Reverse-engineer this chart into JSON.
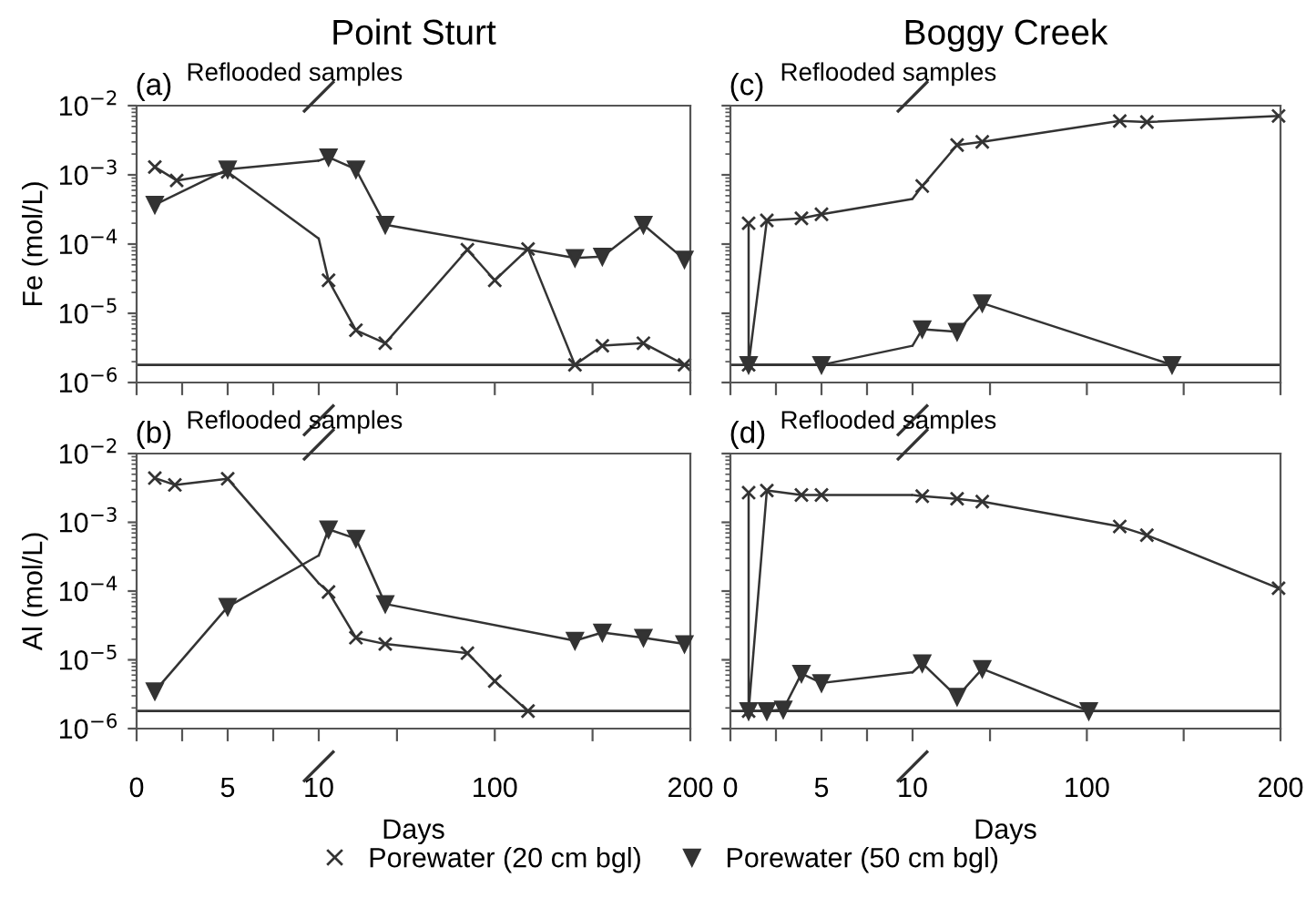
{
  "chart_data": [
    {
      "type": "line",
      "ylabel": "Fe (mol/L)",
      "log": "y",
      "ylim": [
        1e-06,
        0.01
      ],
      "yticks": [
        {
          "value": 1e-06,
          "label": "10$^{−6}$"
        },
        {
          "value": 1e-05,
          "label": "10$^{−5}$"
        },
        {
          "value": 0.0001,
          "label": "10$^{−4}$"
        },
        {
          "value": 0.001,
          "label": "10$^{−3}$"
        },
        {
          "value": 0.01,
          "label": "10$^{−2}$"
        }
      ],
      "xlim": [
        0,
        10
      ],
      "xticks": [
        0,
        {
          "value": 2.5,
          "label": null
        },
        5,
        {
          "value": 7.5,
          "label": null
        }
      ],
      "tick_labels": "y",
      "grid": false,
      "legend": "bottom",
      "ref_lines": [
        {
          "axis": "y",
          "value": 1.8e-06,
          "color": "#333333"
        }
      ],
      "annotations": [
        "(a)",
        "Reflooded samples"
      ],
      "series": [
        {
          "name": "Porewater (20 cm bgl)",
          "color": "#333333",
          "marker": "cross",
          "x": [
            1.0,
            2.2,
            5
          ],
          "values": [
            0.0013,
            0.00083,
            0.0011
          ]
        },
        {
          "name": "Porewater (50 cm bgl)",
          "color": "#333333",
          "marker": "triangle",
          "x": [
            1.0,
            5
          ],
          "values": [
            0.00037,
            0.0012
          ]
        },
        {
          "color": "#333333",
          "marker": "none",
          "x": [
            5,
            10
          ],
          "values": [
            0.0011,
            0.00012
          ]
        },
        {
          "color": "#333333",
          "marker": "none",
          "x": [
            5,
            10
          ],
          "values": [
            0.0012,
            0.0016
          ]
        }
      ]
    },
    {
      "type": "line",
      "title": "Point Sturt",
      "log": "y",
      "ylim": [
        1e-06,
        0.01
      ],
      "xlim": [
        10,
        200
      ],
      "xticks": [
        10,
        {
          "value": 50,
          "label": null
        },
        100,
        {
          "value": 150,
          "label": null
        },
        200
      ],
      "tick_labels": false,
      "grid": false,
      "legend": "bottom",
      "ref_lines": [
        {
          "axis": "y",
          "value": 1.8e-06,
          "color": "#333333"
        }
      ],
      "series": [
        {
          "name": "Porewater (20 cm bgl)",
          "color": "#333333",
          "marker": "cross",
          "x": [
            15,
            29,
            44,
            86,
            100,
            117,
            141,
            155,
            176,
            197
          ],
          "values": [
            3e-05,
            5.7e-06,
            3.7e-06,
            8.3e-05,
            3e-05,
            8.5e-05,
            1.8e-06,
            3.4e-06,
            3.7e-06,
            1.8e-06
          ]
        },
        {
          "name": "Porewater (50 cm bgl)",
          "color": "#333333",
          "marker": "triangle",
          "x": [
            15,
            29,
            44,
            141,
            155,
            176,
            197
          ],
          "values": [
            0.0018,
            0.0012,
            0.00019,
            6.3e-05,
            6.6e-05,
            0.00019,
            6e-05
          ]
        },
        {
          "color": "#333333",
          "marker": "none",
          "x": [
            10,
            15
          ],
          "values": [
            0.00012,
            3e-05
          ]
        },
        {
          "color": "#333333",
          "marker": "none",
          "x": [
            10,
            15
          ],
          "values": [
            0.0016,
            0.0018
          ]
        }
      ]
    },
    {
      "type": "line",
      "ylabel": "Al (mol/L)",
      "log": "y",
      "ylim": [
        1e-06,
        0.01
      ],
      "yticks": [
        {
          "value": 1e-06,
          "label": "10$^{−6}$"
        },
        {
          "value": 1e-05,
          "label": "10$^{−5}$"
        },
        {
          "value": 0.0001,
          "label": "10$^{−4}$"
        },
        {
          "value": 0.001,
          "label": "10$^{−3}$"
        },
        {
          "value": 0.01,
          "label": "10$^{−2}$"
        }
      ],
      "xlim": [
        0,
        10
      ],
      "xticks": [
        0,
        {
          "value": 2.5,
          "label": null
        },
        5,
        {
          "value": 7.5,
          "label": null
        }
      ],
      "grid": false,
      "legend": "bottom",
      "ref_lines": [
        {
          "axis": "y",
          "value": 1.8e-06,
          "color": "#333333"
        }
      ],
      "annotations": [
        "(b)",
        "Reflooded samples"
      ],
      "series": [
        {
          "name": "Porewater (20 cm bgl)",
          "color": "#333333",
          "marker": "cross",
          "x": [
            1.0,
            2.1,
            5
          ],
          "values": [
            0.0044,
            0.0035,
            0.0043
          ]
        },
        {
          "name": "Porewater (50 cm bgl)",
          "color": "#333333",
          "marker": "triangle",
          "x": [
            1.0,
            5
          ],
          "values": [
            3.5e-06,
            5.9e-05
          ]
        },
        {
          "color": "#333333",
          "marker": "none",
          "x": [
            5,
            10
          ],
          "values": [
            0.0043,
            0.00013
          ]
        },
        {
          "color": "#333333",
          "marker": "none",
          "x": [
            5,
            10
          ],
          "values": [
            5.9e-05,
            0.00033
          ]
        }
      ]
    },
    {
      "type": "line",
      "xlabel": "Days",
      "log": "y",
      "ylim": [
        1e-06,
        0.01
      ],
      "xlim": [
        10,
        200
      ],
      "xticks": [
        10,
        {
          "value": 50,
          "label": null
        },
        100,
        {
          "value": 150,
          "label": null
        },
        200
      ],
      "tick_labels": "x",
      "grid": false,
      "legend": "bottom",
      "ref_lines": [
        {
          "axis": "y",
          "value": 1.8e-06,
          "color": "#333333"
        }
      ],
      "series": [
        {
          "name": "Porewater (20 cm bgl)",
          "color": "#333333",
          "marker": "cross",
          "x": [
            15,
            29,
            44,
            86,
            100,
            117
          ],
          "values": [
            9.7e-05,
            2.1e-05,
            1.7e-05,
            1.25e-05,
            4.9e-06,
            1.8e-06
          ]
        },
        {
          "name": "Porewater (50 cm bgl)",
          "color": "#333333",
          "marker": "triangle",
          "x": [
            15,
            29,
            44,
            141,
            155,
            176,
            197
          ],
          "values": [
            0.00079,
            0.00058,
            6.5e-05,
            1.9e-05,
            2.5e-05,
            2.1e-05,
            1.7e-05
          ]
        },
        {
          "color": "#333333",
          "marker": "none",
          "x": [
            10,
            15
          ],
          "values": [
            0.00013,
            9.7e-05
          ]
        },
        {
          "color": "#333333",
          "marker": "none",
          "x": [
            10,
            15
          ],
          "values": [
            0.00033,
            0.00079
          ]
        }
      ]
    },
    {
      "type": "line",
      "log": "y",
      "ylim": [
        1e-06,
        0.01
      ],
      "yticks": [
        {
          "value": 1e-06,
          "label": null
        },
        {
          "value": 1e-05,
          "label": null
        },
        {
          "value": 0.0001,
          "label": null
        },
        {
          "value": 0.001,
          "label": null
        },
        {
          "value": 0.01,
          "label": null
        }
      ],
      "xlim": [
        0,
        10
      ],
      "xticks": [
        0,
        {
          "value": 2.5,
          "label": null
        },
        5,
        {
          "value": 7.5,
          "label": null
        }
      ],
      "tick_labels": false,
      "grid": false,
      "legend": "bottom",
      "ref_lines": [
        {
          "axis": "y",
          "value": 1.8e-06,
          "color": "#333333"
        }
      ],
      "annotations": [
        "(c)",
        "Reflooded samples"
      ],
      "series": [
        {
          "name": "Porewater (20 cm bgl)",
          "color": "#333333",
          "marker": "cross",
          "x": [
            1.0,
            1.0,
            2.0,
            3.9,
            5
          ],
          "values": [
            0.0002,
            1.8e-06,
            0.00022,
            0.000235,
            0.00027
          ]
        },
        {
          "name": "Porewater (50 cm bgl)",
          "color": "#333333",
          "marker": "triangle",
          "x": [
            1.0,
            5
          ],
          "values": [
            1.8e-06,
            1.8e-06
          ]
        },
        {
          "color": "#333333",
          "marker": "none",
          "x": [
            5,
            10
          ],
          "values": [
            0.00027,
            0.00045
          ]
        },
        {
          "color": "#333333",
          "marker": "none",
          "x": [
            5,
            10
          ],
          "values": [
            1.8e-06,
            3.4e-06
          ]
        }
      ]
    },
    {
      "type": "line",
      "title": "Boggy Creek",
      "log": "y",
      "ylim": [
        1e-06,
        0.01
      ],
      "xlim": [
        10,
        200
      ],
      "xticks": [
        10,
        {
          "value": 50,
          "label": null
        },
        100,
        {
          "value": 150,
          "label": null
        },
        200
      ],
      "tick_labels": false,
      "grid": false,
      "legend": "bottom",
      "ref_lines": [
        {
          "axis": "y",
          "value": 1.8e-06,
          "color": "#333333"
        }
      ],
      "series": [
        {
          "name": "Porewater (20 cm bgl)",
          "color": "#333333",
          "marker": "cross",
          "x": [
            15,
            33,
            46,
            117,
            131,
            199
          ],
          "values": [
            0.00069,
            0.0027,
            0.003,
            0.006,
            0.0058,
            0.0071
          ]
        },
        {
          "name": "Porewater (50 cm bgl)",
          "color": "#333333",
          "marker": "triangle",
          "x": [
            15,
            33,
            46,
            144
          ],
          "values": [
            5.9e-06,
            5.4e-06,
            1.4e-05,
            1.8e-06
          ]
        },
        {
          "color": "#333333",
          "marker": "none",
          "x": [
            10,
            15
          ],
          "values": [
            0.00045,
            0.00069
          ]
        },
        {
          "color": "#333333",
          "marker": "none",
          "x": [
            10,
            15
          ],
          "values": [
            3.4e-06,
            5.9e-06
          ]
        }
      ]
    },
    {
      "type": "line",
      "log": "y",
      "ylim": [
        1e-06,
        0.01
      ],
      "yticks": [
        {
          "value": 1e-06,
          "label": null
        },
        {
          "value": 1e-05,
          "label": null
        },
        {
          "value": 0.0001,
          "label": null
        },
        {
          "value": 0.001,
          "label": null
        },
        {
          "value": 0.01,
          "label": null
        }
      ],
      "xlim": [
        0,
        10
      ],
      "xticks": [
        0,
        {
          "value": 2.5,
          "label": null
        },
        5,
        {
          "value": 7.5,
          "label": null
        }
      ],
      "tick_labels": "x",
      "grid": false,
      "legend": "bottom",
      "ref_lines": [
        {
          "axis": "y",
          "value": 1.8e-06,
          "color": "#333333"
        }
      ],
      "annotations": [
        "(d)",
        "Reflooded samples"
      ],
      "series": [
        {
          "name": "Porewater (20 cm bgl)",
          "color": "#333333",
          "marker": "cross",
          "x": [
            1.0,
            1.0,
            2.0,
            3.9,
            5
          ],
          "values": [
            0.0027,
            1.8e-06,
            0.0029,
            0.0025,
            0.0025
          ]
        },
        {
          "name": "Porewater (50 cm bgl)",
          "color": "#333333",
          "marker": "triangle",
          "x": [
            1.0,
            2.0,
            2.9,
            3.9,
            5
          ],
          "values": [
            1.8e-06,
            1.8e-06,
            1.9e-06,
            6.3e-06,
            4.6e-06
          ]
        },
        {
          "color": "#333333",
          "marker": "none",
          "x": [
            5,
            10
          ],
          "values": [
            0.0025,
            0.0025
          ]
        },
        {
          "color": "#333333",
          "marker": "none",
          "x": [
            5,
            10
          ],
          "values": [
            4.6e-06,
            6.6e-06
          ]
        }
      ]
    },
    {
      "type": "line",
      "xlabel": "Days",
      "log": "y",
      "ylim": [
        1e-06,
        0.01
      ],
      "xlim": [
        10,
        200
      ],
      "xticks": [
        10,
        {
          "value": 50,
          "label": null
        },
        100,
        {
          "value": 150,
          "label": null
        },
        200
      ],
      "tick_labels": "x",
      "grid": false,
      "legend": "bottom",
      "ref_lines": [
        {
          "axis": "y",
          "value": 1.8e-06,
          "color": "#333333"
        }
      ],
      "series": [
        {
          "name": "Porewater (20 cm bgl)",
          "color": "#333333",
          "marker": "cross",
          "x": [
            15,
            33,
            46,
            117,
            131,
            199
          ],
          "values": [
            0.0024,
            0.0022,
            0.002,
            0.00087,
            0.00065,
            0.00011
          ]
        },
        {
          "name": "Porewater (50 cm bgl)",
          "color": "#333333",
          "marker": "triangle",
          "x": [
            15,
            33,
            46,
            101
          ],
          "values": [
            8.9e-06,
            2.9e-06,
            7.4e-06,
            1.8e-06
          ]
        },
        {
          "color": "#333333",
          "marker": "none",
          "x": [
            10,
            15
          ],
          "values": [
            0.0025,
            0.0024
          ]
        },
        {
          "color": "#333333",
          "marker": "none",
          "x": [
            10,
            15
          ],
          "values": [
            6.6e-06,
            8.9e-06
          ]
        }
      ]
    }
  ]
}
